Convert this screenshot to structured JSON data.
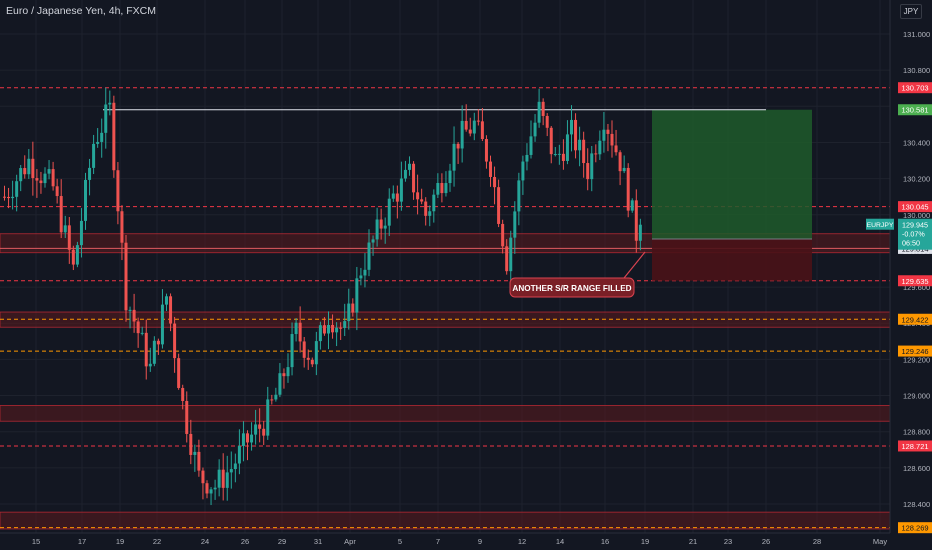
{
  "header": {
    "title": "Euro / Japanese Yen, 4h, FXCM",
    "currency_button": "JPY"
  },
  "colors": {
    "background": "#131722",
    "up": "#26a69a",
    "down": "#ef5350",
    "grid": "#1e222d",
    "red_level": "#f23645",
    "orange_level": "#ff9800",
    "zone_fill": "#5b1a1e",
    "target_fill": "#1e5b2a",
    "stop_fill": "#4a1217"
  },
  "price_axis": {
    "ticks": [
      "131.000",
      "130.800",
      "130.600",
      "130.400",
      "130.200",
      "130.000",
      "129.800",
      "129.600",
      "129.400",
      "129.200",
      "129.000",
      "128.800",
      "128.600",
      "128.400"
    ]
  },
  "time_axis": {
    "ticks": [
      "15",
      "17",
      "19",
      "22",
      "24",
      "26",
      "29",
      "31",
      "Apr",
      "5",
      "7",
      "9",
      "12",
      "14",
      "16",
      "19",
      "21",
      "23",
      "26",
      "28",
      "May"
    ]
  },
  "levels": {
    "red_dashed": [
      {
        "price": 130.703,
        "label": "130.703"
      },
      {
        "price": 130.045,
        "label": "130.045"
      },
      {
        "price": 129.635,
        "label": "129.635"
      },
      {
        "price": 128.721,
        "label": "128.721"
      }
    ],
    "orange_dashed": [
      {
        "price": 129.422,
        "label": "129.422"
      },
      {
        "price": 129.246,
        "label": "129.246"
      },
      {
        "price": 128.269,
        "label": "128.269"
      }
    ],
    "resistance_line": {
      "price": 130.581,
      "label": "130.581"
    },
    "support_line": {
      "price": 129.814,
      "label": "129.814"
    }
  },
  "zones": [
    {
      "top": 129.895,
      "bottom": 129.79
    },
    {
      "top": 129.462,
      "bottom": 129.378
    },
    {
      "top": 128.945,
      "bottom": 128.858
    },
    {
      "top": 128.355,
      "bottom": 128.262
    }
  ],
  "position": {
    "entry": 129.866,
    "target": 130.581,
    "stop": 129.635
  },
  "current_price": {
    "symbol": "EURJPY",
    "price": "129.945",
    "change": "-0.07%",
    "countdown": "06:50"
  },
  "annotation": {
    "text": "ANOTHER S/R RANGE FILLED"
  },
  "chart_data": {
    "type": "candlestick",
    "symbol": "EURJPY",
    "timeframe": "4h",
    "title": "Euro / Japanese Yen, 4h, FXCM",
    "ylim": [
      128.23,
      131.08
    ],
    "x_range_label": [
      "15",
      "May"
    ],
    "last_close": 129.945,
    "anchors": [
      [
        0,
        130.1
      ],
      [
        6,
        130.3
      ],
      [
        12,
        130.15
      ],
      [
        17,
        129.7
      ],
      [
        22,
        130.4
      ],
      [
        26,
        130.58
      ],
      [
        30,
        129.55
      ],
      [
        36,
        129.15
      ],
      [
        40,
        129.55
      ],
      [
        44,
        128.95
      ],
      [
        48,
        128.55
      ],
      [
        52,
        128.5
      ],
      [
        56,
        128.6
      ],
      [
        60,
        128.75
      ],
      [
        64,
        128.85
      ],
      [
        68,
        129.05
      ],
      [
        72,
        129.35
      ],
      [
        76,
        129.2
      ],
      [
        80,
        129.45
      ],
      [
        84,
        129.35
      ],
      [
        88,
        129.7
      ],
      [
        92,
        129.9
      ],
      [
        96,
        130.1
      ],
      [
        100,
        130.22
      ],
      [
        104,
        130.0
      ],
      [
        108,
        130.2
      ],
      [
        112,
        130.42
      ],
      [
        116,
        130.5
      ],
      [
        120,
        130.28
      ],
      [
        124,
        129.75
      ],
      [
        128,
        130.3
      ],
      [
        132,
        130.58
      ],
      [
        136,
        130.3
      ],
      [
        140,
        130.45
      ],
      [
        144,
        130.25
      ],
      [
        148,
        130.55
      ],
      [
        152,
        130.3
      ],
      [
        156,
        129.9
      ]
    ]
  }
}
